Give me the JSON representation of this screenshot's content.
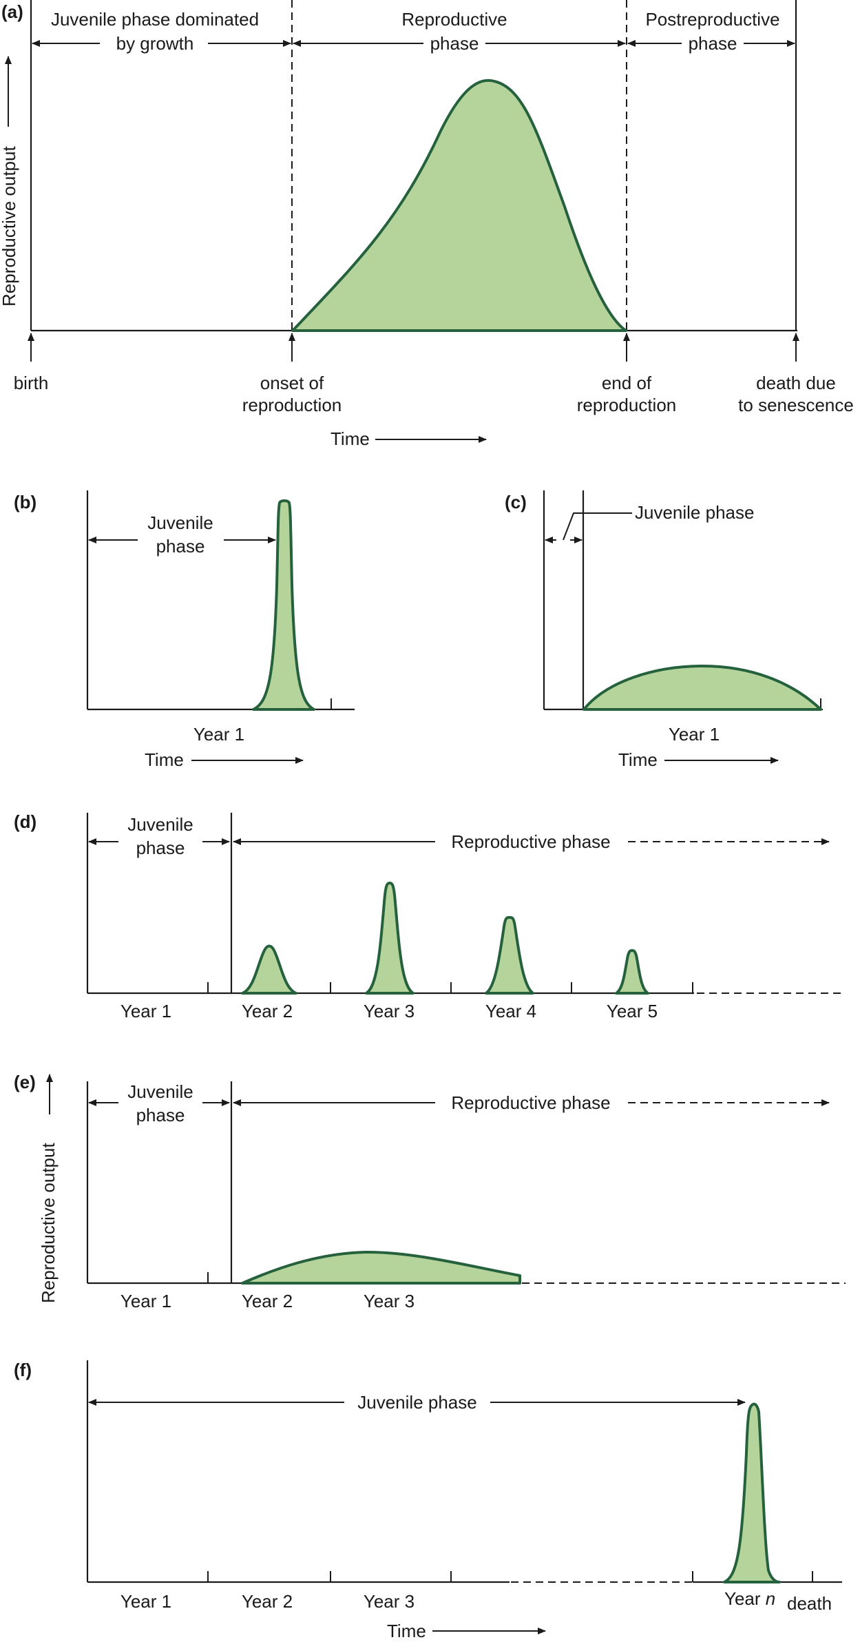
{
  "panels": {
    "a": {
      "letter": "(a)",
      "ylabel": "Reproductive output",
      "phase_juvenile": [
        "Juvenile phase dominated",
        "by growth"
      ],
      "phase_reproductive": [
        "Reproductive",
        "phase"
      ],
      "phase_post": [
        "Postreproductive",
        "phase"
      ],
      "marker_birth": [
        "birth"
      ],
      "marker_onset": [
        "onset of",
        "reproduction"
      ],
      "marker_end": [
        "end of",
        "reproduction"
      ],
      "marker_death": [
        "death due",
        "to senescence"
      ],
      "time_label": "Time"
    },
    "b": {
      "letter": "(b)",
      "phase": [
        "Juvenile",
        "phase"
      ],
      "year": "Year 1",
      "time_label": "Time"
    },
    "c": {
      "letter": "(c)",
      "phase": "Juvenile phase",
      "year": "Year 1",
      "time_label": "Time"
    },
    "d": {
      "letter": "(d)",
      "phase": [
        "Juvenile",
        "phase"
      ],
      "reproductive": "Reproductive phase",
      "years": [
        "Year 1",
        "Year 2",
        "Year 3",
        "Year 4",
        "Year 5"
      ]
    },
    "e": {
      "letter": "(e)",
      "ylabel": "Reproductive output",
      "phase": [
        "Juvenile",
        "phase"
      ],
      "reproductive": "Reproductive phase",
      "years": [
        "Year 1",
        "Year 2",
        "Year 3"
      ]
    },
    "f": {
      "letter": "(f)",
      "phase": "Juvenile phase",
      "years": [
        "Year 1",
        "Year 2",
        "Year 3"
      ],
      "year_n": "Year",
      "year_n_var": "n",
      "death": "death",
      "time_label": "Time"
    }
  },
  "colors": {
    "fill": "#b5d49b",
    "stroke": "#25613c",
    "ink": "#1a1a1a"
  }
}
